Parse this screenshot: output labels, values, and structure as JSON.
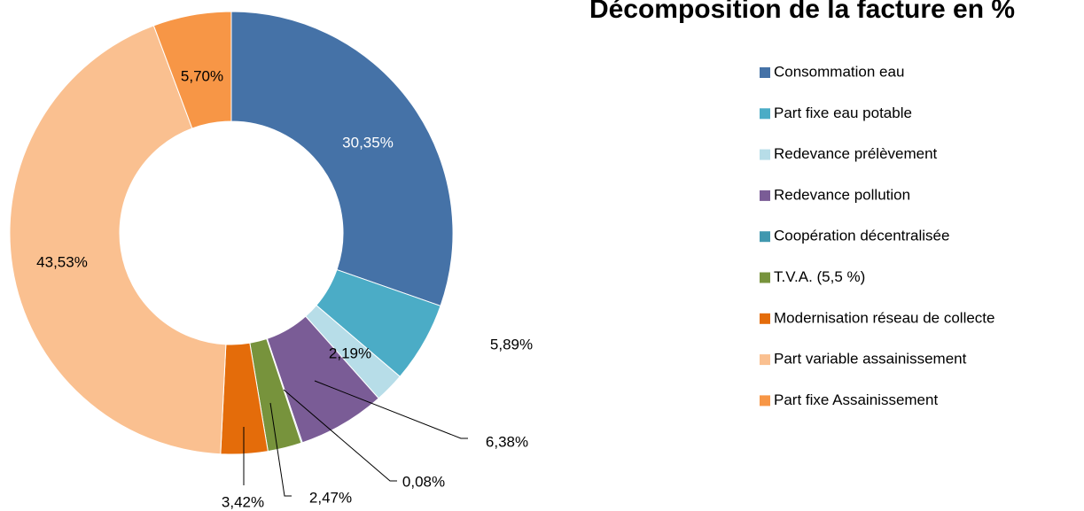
{
  "chart_data": {
    "type": "donut",
    "title": "Décomposition de la facture en %",
    "categories": [
      "Consommation eau",
      "Part fixe eau potable",
      "Redevance prélèvement",
      "Redevance pollution",
      "Coopération décentralisée",
      "T.V.A. (5,5 %)",
      "Modernisation réseau de collecte",
      "Part variable assainissement",
      "Part fixe Assainissement"
    ],
    "values": [
      30.35,
      5.89,
      2.19,
      6.38,
      0.08,
      2.47,
      3.42,
      43.53,
      5.7
    ],
    "value_labels": [
      "30,35%",
      "5,89%",
      "2,19%",
      "6,38%",
      "0,08%",
      "2,47%",
      "3,42%",
      "43,53%",
      "5,70%"
    ],
    "colors": [
      "#4572a7",
      "#4bacc6",
      "#b7dde8",
      "#7a5c96",
      "#4198af",
      "#77933c",
      "#e46c0a",
      "#fac090",
      "#f79646"
    ],
    "legend": "right"
  }
}
